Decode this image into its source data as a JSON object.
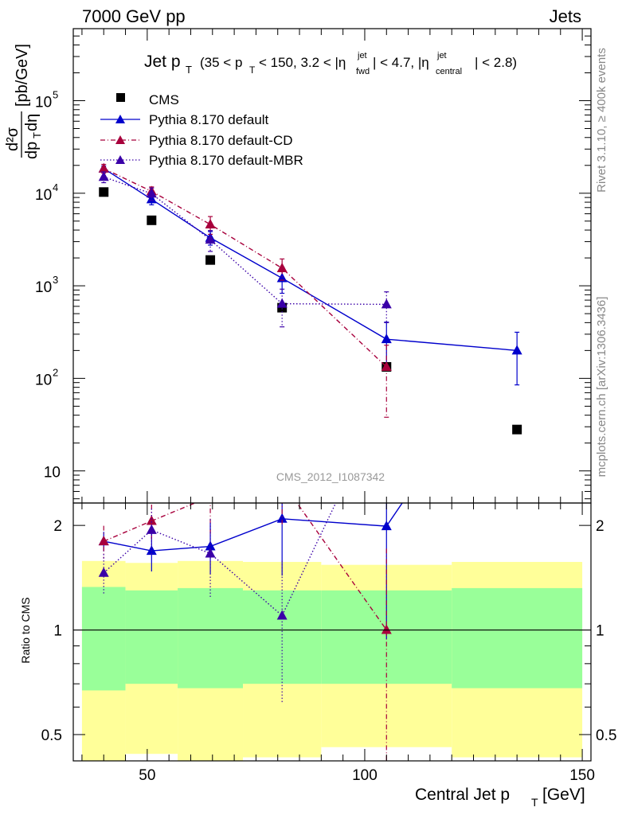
{
  "header": {
    "left": "7000 GeV pp",
    "right": "Jets"
  },
  "side_labels": {
    "rivet": "Rivet 3.1.10, ≥ 400k events",
    "mcplots": "mcplots.cern.ch [arXiv:1306.3436]"
  },
  "plot_title": {
    "main": "Jet p",
    "main_sub": "T",
    "cut_1": "(35 < p",
    "cut_1_sub": "T",
    "cut_2": "< 150, 3.2 < |η",
    "cut_2_sup": "jet",
    "cut_2_sub": "fwd",
    "cut_3": "| < 4.7, |η",
    "cut_3_sup": "jet",
    "cut_3_sub": "central",
    "cut_4": "| < 2.8)"
  },
  "watermark": "CMS_2012_I1087342",
  "y_label": {
    "numerator": "d²σ",
    "denominator": "dp",
    "denominator_sub": "T",
    "denominator_rest": "dη",
    "units": "[pb/GeV]"
  },
  "ratio_y_label": "Ratio to CMS",
  "x_label": {
    "main": "Central Jet p",
    "sub": "T",
    "units": "[GeV]"
  },
  "legend": [
    {
      "label": "CMS"
    },
    {
      "label": "Pythia 8.170 default"
    },
    {
      "label": "Pythia 8.170 default-CD"
    },
    {
      "label": "Pythia 8.170 default-MBR"
    }
  ],
  "colors": {
    "data": "#000000",
    "default": "#0000cc",
    "cd": "#a8003c",
    "mbr": "#3a00a8",
    "band_inner": "#99ff99",
    "band_outer": "#ffff99"
  },
  "chart_data": {
    "type": "scatter",
    "x_scale": "linear",
    "y_scale": "log",
    "xlim": [
      33,
      152
    ],
    "ylim": [
      4.5,
      600000
    ],
    "ratio_ylim": [
      0.42,
      2.32
    ],
    "x_ticks": [
      "50",
      "100",
      "150"
    ],
    "y_ticks": [
      "10",
      "10^2",
      "10^3",
      "10^4",
      "10^5"
    ],
    "ratio_y_ticks": [
      "0.5",
      "1",
      "2"
    ],
    "grid": false,
    "legend_position": "top-left",
    "series": [
      {
        "name": "CMS",
        "x": [
          40,
          51,
          64.5,
          81,
          105,
          135
        ],
        "x_bin_edges": [
          [
            35,
            45
          ],
          [
            45,
            57
          ],
          [
            57,
            72
          ],
          [
            72,
            90
          ],
          [
            90,
            120
          ],
          [
            120,
            150
          ]
        ],
        "y": [
          10300,
          5100,
          1900,
          580,
          133,
          28
        ],
        "rel_unc_inner": [
          0.33,
          0.3,
          0.32,
          0.3,
          0.3,
          0.32
        ],
        "rel_unc_outer": [
          0.58,
          0.56,
          0.58,
          0.57,
          0.54,
          0.57
        ]
      },
      {
        "name": "Pythia 8.170 default",
        "x": [
          40,
          51,
          64.5,
          81,
          105,
          135
        ],
        "y": [
          18500,
          8600,
          3300,
          1210,
          265,
          200
        ],
        "y_err": [
          1200,
          1100,
          550,
          380,
          140,
          115
        ],
        "ratio": [
          1.8,
          1.69,
          1.74,
          2.09,
          1.99,
          7.1
        ]
      },
      {
        "name": "Pythia 8.170 default-CD",
        "x": [
          40,
          51,
          64.5,
          81,
          105
        ],
        "y": [
          18500,
          10500,
          4600,
          1550,
          133
        ],
        "y_err": [
          2000,
          1200,
          1000,
          400,
          95
        ],
        "ratio": [
          1.8,
          2.06,
          2.42,
          2.67,
          1.0
        ]
      },
      {
        "name": "Pythia 8.170 default-MBR",
        "x": [
          40,
          51,
          64.5,
          81,
          105
        ],
        "y": [
          15000,
          9900,
          3150,
          640,
          630
        ],
        "y_err": [
          2000,
          1500,
          800,
          280,
          230
        ],
        "ratio": [
          1.46,
          1.94,
          1.66,
          1.1,
          4.7
        ]
      }
    ]
  }
}
